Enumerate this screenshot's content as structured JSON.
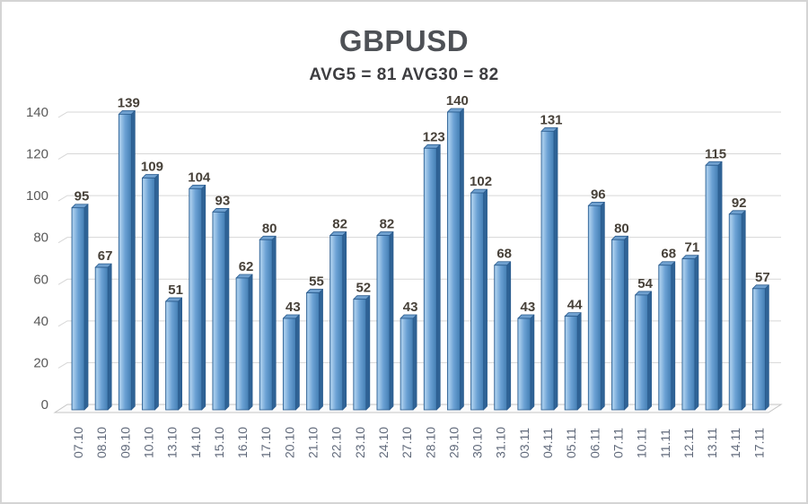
{
  "window": {
    "background": "#ffffff",
    "border_color": "#d4d4d4"
  },
  "chart_data": {
    "type": "bar",
    "title": "GBPUSD",
    "subtitle": "AVG5 = 81 AVG30 = 82",
    "categories": [
      "07.10",
      "08.10",
      "09.10",
      "10.10",
      "13.10",
      "14.10",
      "15.10",
      "16.10",
      "17.10",
      "20.10",
      "21.10",
      "22.10",
      "23.10",
      "24.10",
      "27.10",
      "28.10",
      "29.10",
      "30.10",
      "31.10",
      "03.11",
      "04.11",
      "05.11",
      "06.11",
      "07.11",
      "10.11",
      "11.11",
      "12.11",
      "13.11",
      "14.11",
      "17.11"
    ],
    "values": [
      95,
      67,
      139,
      109,
      51,
      104,
      93,
      62,
      80,
      43,
      55,
      82,
      52,
      82,
      43,
      123,
      140,
      102,
      68,
      43,
      131,
      44,
      96,
      80,
      54,
      68,
      71,
      115,
      92,
      57
    ],
    "xlabel": "",
    "ylabel": "",
    "ylim": [
      0,
      140
    ],
    "yticks": [
      0,
      20,
      40,
      60,
      80,
      100,
      120,
      140
    ],
    "grid": true,
    "legend": false,
    "style_3d": true,
    "colors": {
      "bar_edge_light": "#7fb0da",
      "bar_highlight": "#a9cdec",
      "bar_mid": "#6ba1d4",
      "bar_dark": "#437eb3",
      "bar_side_face": "#2f6396",
      "bar_top_face": "#6fa0cf",
      "bar_stroke": "#2b5c8e",
      "grid_line": "#d7d7d7",
      "floor_fill": "#fbfbfb",
      "floor_stroke": "#c4c4c4",
      "value_label": "#474139",
      "y_axis_label": "#595959",
      "x_axis_label": "#60697a",
      "title_color": "#4e5156",
      "subtitle_color": "#3d3d40"
    }
  }
}
